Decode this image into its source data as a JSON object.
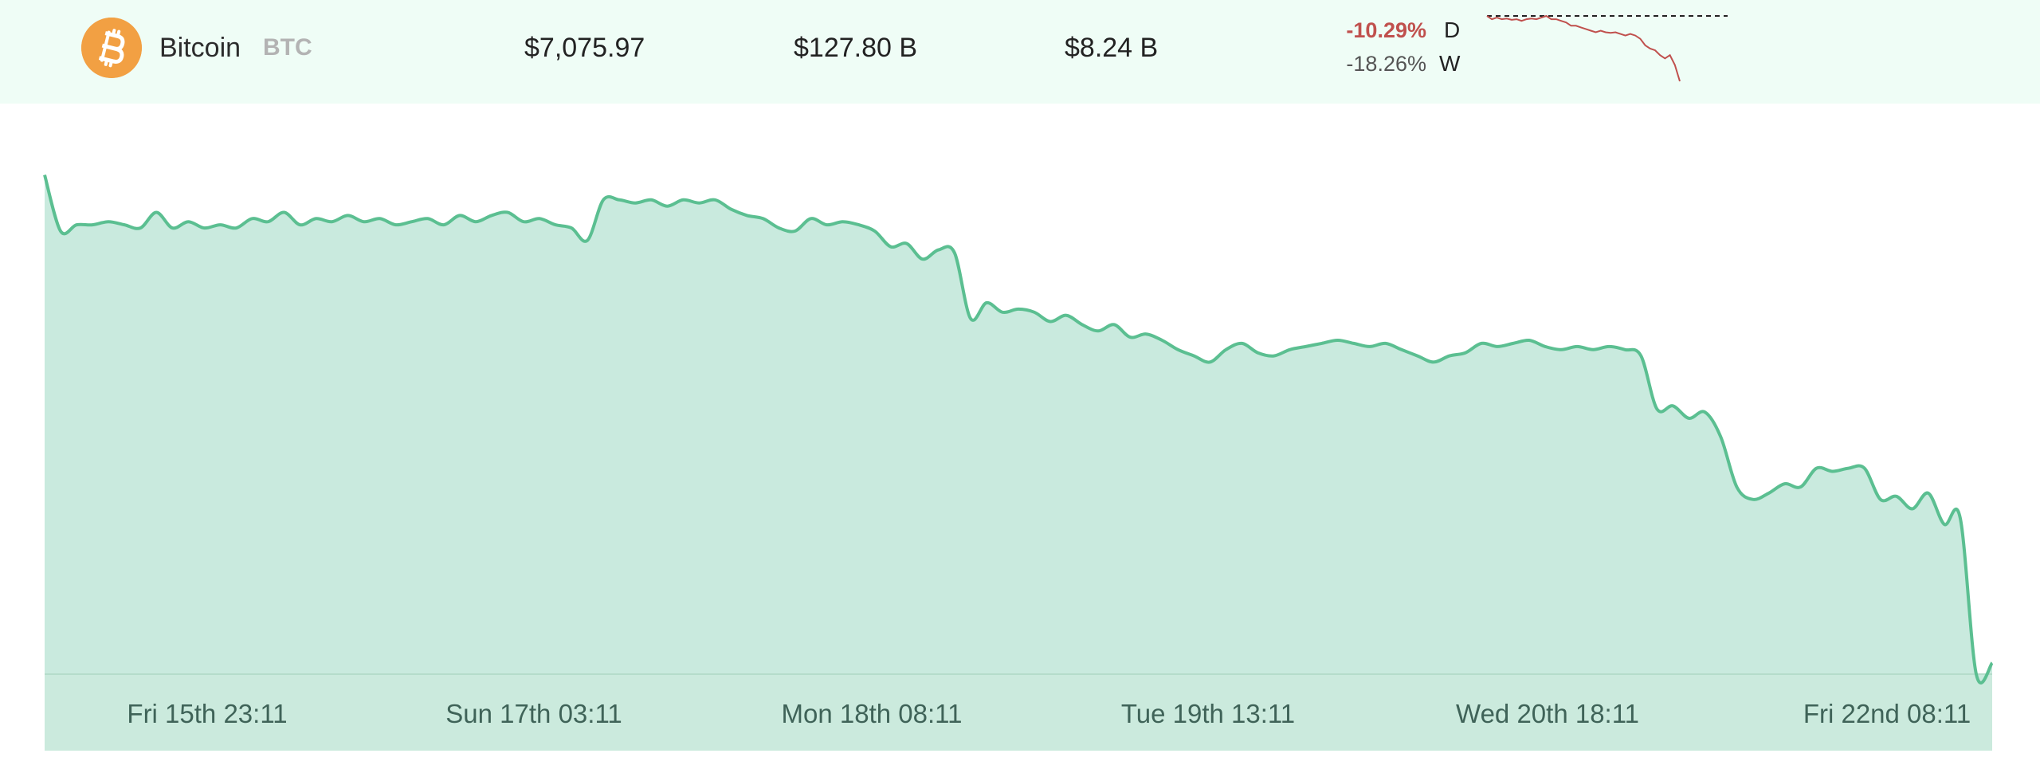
{
  "row": {
    "name": "Bitcoin",
    "symbol": "BTC",
    "price": "$7,075.97",
    "market_cap": "$127.80 B",
    "volume": "$8.24 B",
    "change_day": "-10.29%",
    "change_day_label": "D",
    "change_week": "-18.26%",
    "change_week_label": "W",
    "icon": "bitcoin-icon"
  },
  "colors": {
    "row_bg": "#effdf6",
    "coin_orange": "#f2a043",
    "negative": "#c0504d",
    "chart_line": "#5bbf91",
    "chart_fill": "#c9eade",
    "axis_band": "#cbeadd",
    "axis_text": "#3f6358"
  },
  "sparkline": {
    "values": [
      1.0,
      0.99,
      0.995,
      0.99,
      0.992,
      0.988,
      0.99,
      0.985,
      0.99,
      0.992,
      0.99,
      0.995,
      1.0,
      0.99,
      0.99,
      0.985,
      0.98,
      0.97,
      0.97,
      0.965,
      0.96,
      0.955,
      0.95,
      0.955,
      0.95,
      0.948,
      0.95,
      0.945,
      0.94,
      0.945,
      0.94,
      0.93,
      0.91,
      0.9,
      0.895,
      0.88,
      0.87,
      0.88,
      0.85,
      0.8
    ]
  },
  "chart_data": {
    "type": "area",
    "x_ticks": [
      "Fri 15th 23:11",
      "Sun 17th 03:11",
      "Mon 18th 08:11",
      "Tue 19th 13:11",
      "Wed 20th 18:11",
      "Fri 22nd 08:11"
    ],
    "values": [
      8640,
      8460,
      8480,
      8480,
      8490,
      8480,
      8470,
      8520,
      8470,
      8490,
      8470,
      8480,
      8470,
      8500,
      8490,
      8520,
      8480,
      8500,
      8490,
      8510,
      8490,
      8500,
      8480,
      8490,
      8500,
      8480,
      8510,
      8490,
      8510,
      8520,
      8490,
      8500,
      8480,
      8470,
      8430,
      8560,
      8560,
      8550,
      8560,
      8540,
      8560,
      8550,
      8560,
      8530,
      8510,
      8500,
      8470,
      8460,
      8500,
      8480,
      8490,
      8480,
      8460,
      8410,
      8420,
      8370,
      8400,
      8390,
      8180,
      8230,
      8200,
      8210,
      8200,
      8170,
      8190,
      8160,
      8140,
      8160,
      8120,
      8130,
      8110,
      8080,
      8060,
      8040,
      8080,
      8100,
      8070,
      8060,
      8080,
      8090,
      8100,
      8110,
      8100,
      8090,
      8100,
      8080,
      8060,
      8040,
      8060,
      8070,
      8100,
      8090,
      8100,
      8110,
      8090,
      8080,
      8090,
      8080,
      8090,
      8080,
      8060,
      7890,
      7900,
      7860,
      7880,
      7800,
      7640,
      7600,
      7620,
      7650,
      7640,
      7700,
      7690,
      7700,
      7700,
      7600,
      7610,
      7570,
      7620,
      7520,
      7540,
      7040,
      7075.97
    ],
    "ylim": [
      7040,
      8700
    ],
    "grid": false,
    "legend": "none"
  }
}
